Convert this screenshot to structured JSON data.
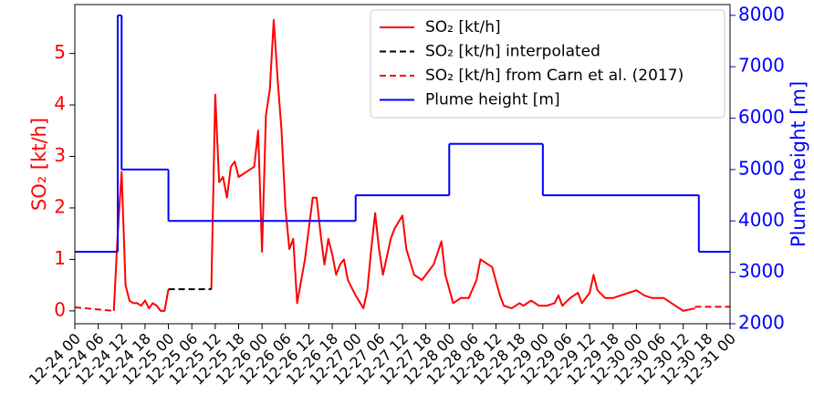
{
  "chart_data": {
    "type": "line",
    "ylabel": "SO₂ [kt/h]",
    "y2label": "Plume height [m]",
    "xlim": [
      "12-24 00",
      "12-31 00"
    ],
    "xticks": [
      "12-24 00",
      "12-24 06",
      "12-24 12",
      "12-24 18",
      "12-25 00",
      "12-25 06",
      "12-25 12",
      "12-25 18",
      "12-26 00",
      "12-26 06",
      "12-26 12",
      "12-26 18",
      "12-27 00",
      "12-27 06",
      "12-27 12",
      "12-27 18",
      "12-28 00",
      "12-28 06",
      "12-28 12",
      "12-28 18",
      "12-29 00",
      "12-29 06",
      "12-29 12",
      "12-29 18",
      "12-30 00",
      "12-30 06",
      "12-30 12",
      "12-30 18",
      "12-31 00"
    ],
    "ylim": [
      -0.25,
      5.95
    ],
    "yticks": [
      0,
      1,
      2,
      3,
      4,
      5
    ],
    "y2lim": [
      2000,
      8210
    ],
    "y2ticks": [
      2000,
      3000,
      4000,
      5000,
      6000,
      7000,
      8000
    ],
    "legend": "upper right",
    "series": [
      {
        "name": "SO₂ [kt/h]",
        "color": "#ff0000",
        "linestyle": "solid",
        "x": [
          "12-24 10",
          "12-24 11",
          "12-24 12",
          "12-24 13",
          "12-24 14",
          "12-24 15",
          "12-24 16",
          "12-24 17",
          "12-24 18",
          "12-24 19",
          "12-24 20",
          "12-24 21",
          "12-24 22",
          "12-24 23",
          "12-25 00",
          "12-25 06",
          "12-25 11",
          "12-25 12",
          "12-25 13",
          "12-25 14",
          "12-25 15",
          "12-25 16",
          "12-25 17",
          "12-25 18",
          "12-25 20",
          "12-25 22",
          "12-25 23",
          "12-26 00",
          "12-26 01",
          "12-26 02",
          "12-26 03",
          "12-26 04",
          "12-26 05",
          "12-26 06",
          "12-26 07",
          "12-26 08",
          "12-26 09",
          "12-26 11",
          "12-26 12",
          "12-26 13",
          "12-26 14",
          "12-26 15",
          "12-26 16",
          "12-26 17",
          "12-26 18",
          "12-26 19",
          "12-26 20",
          "12-26 21",
          "12-26 22",
          "12-27 00",
          "12-27 02",
          "12-27 03",
          "12-27 04",
          "12-27 05",
          "12-27 06",
          "12-27 07",
          "12-27 09",
          "12-27 10",
          "12-27 12",
          "12-27 13",
          "12-27 15",
          "12-27 17",
          "12-27 20",
          "12-27 22",
          "12-27 23",
          "12-28 01",
          "12-28 03",
          "12-28 05",
          "12-28 07",
          "12-28 08",
          "12-28 10",
          "12-28 11",
          "12-28 13",
          "12-28 14",
          "12-28 16",
          "12-28 18",
          "12-28 19",
          "12-28 21",
          "12-28 23",
          "12-29 01",
          "12-29 03",
          "12-29 04",
          "12-29 05",
          "12-29 07",
          "12-29 09",
          "12-29 10",
          "12-29 12",
          "12-29 13",
          "12-29 14",
          "12-29 16",
          "12-29 18",
          "12-29 20",
          "12-29 22",
          "12-30 00",
          "12-30 02",
          "12-30 04",
          "12-30 07",
          "12-30 09",
          "12-30 12",
          "12-30 15"
        ],
        "values": [
          0.0,
          1.5,
          2.7,
          0.5,
          0.2,
          0.15,
          0.15,
          0.1,
          0.2,
          0.05,
          0.15,
          0.1,
          0.0,
          0.0,
          0.42,
          null,
          0.42,
          4.2,
          2.5,
          2.6,
          2.2,
          2.8,
          2.9,
          2.6,
          2.7,
          2.8,
          3.5,
          1.15,
          3.8,
          4.3,
          5.65,
          4.5,
          3.5,
          2.0,
          1.2,
          1.4,
          0.15,
          1.0,
          1.6,
          2.2,
          2.2,
          1.5,
          0.9,
          1.4,
          1.1,
          0.7,
          0.9,
          1.0,
          0.6,
          0.3,
          0.05,
          0.4,
          1.2,
          1.9,
          1.2,
          0.7,
          1.4,
          1.6,
          1.85,
          1.2,
          0.7,
          0.6,
          0.9,
          1.35,
          0.7,
          0.15,
          0.25,
          0.25,
          0.6,
          1.0,
          0.9,
          0.85,
          0.3,
          0.1,
          0.05,
          0.15,
          0.1,
          0.2,
          0.1,
          0.1,
          0.15,
          0.3,
          0.1,
          0.25,
          0.35,
          0.15,
          0.35,
          0.7,
          0.4,
          0.25,
          0.25,
          0.3,
          0.35,
          0.4,
          0.3,
          0.25,
          0.25,
          0.15,
          0.0,
          0.05
        ]
      },
      {
        "name": "SO₂ [kt/h] interpolated",
        "color": "#000000",
        "linestyle": "dashed",
        "x": [
          "12-25 00",
          "12-25 11"
        ],
        "values": [
          0.42,
          0.42
        ]
      },
      {
        "name": "SO₂ [kt/h] from Carn et al. (2017)",
        "color": "#ff0000",
        "linestyle": "dashed",
        "x": [
          "12-24 00",
          "12-24 10",
          "12-27 00",
          "12-30 15",
          "12-31 00"
        ],
        "values": [
          0.07,
          0.0,
          null,
          0.08,
          0.08
        ]
      },
      {
        "name": "Plume height [m]",
        "color": "#0000ff",
        "linestyle": "solid",
        "axis": "y2",
        "drawstyle": "steps-post",
        "x": [
          "12-24 00",
          "12-24 11",
          "12-24 12",
          "12-25 00",
          "12-27 00",
          "12-28 00",
          "12-29 00",
          "12-30 16",
          "12-31 00"
        ],
        "values": [
          3400,
          8000,
          5000,
          4000,
          4500,
          5500,
          4500,
          3400,
          3400
        ]
      }
    ]
  }
}
